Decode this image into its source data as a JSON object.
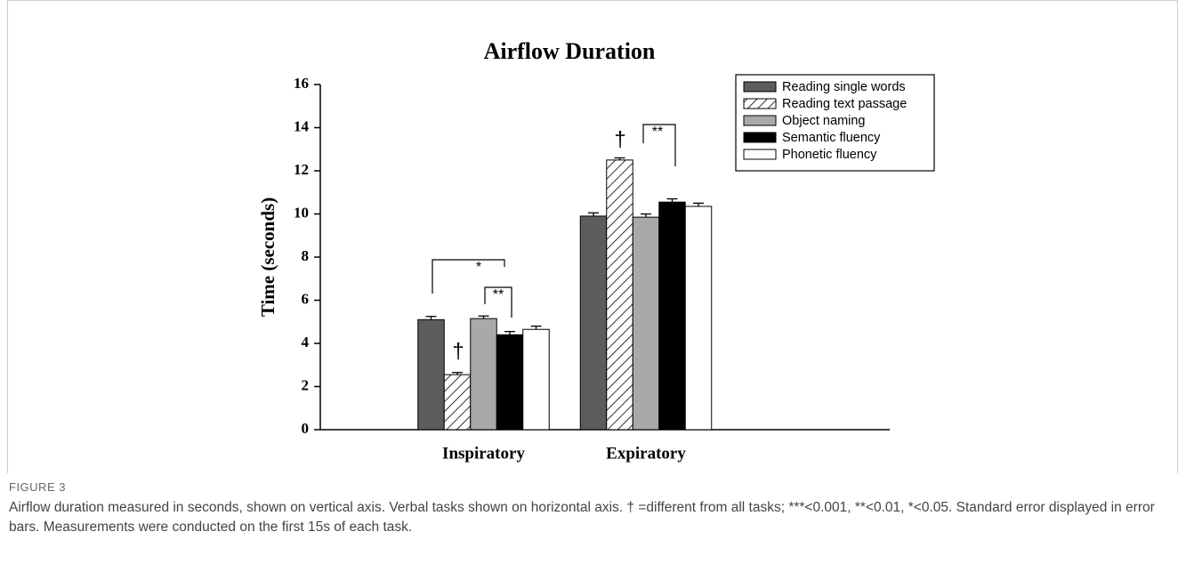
{
  "chart_data": {
    "type": "bar",
    "title": "Airflow Duration",
    "y_label": "Time (seconds)",
    "categories": [
      "Inspiratory",
      "Expiratory"
    ],
    "series": [
      {
        "name": "Reading single words",
        "color": "#5c5c5c",
        "values": [
          5.1,
          9.9
        ],
        "errors": [
          0.15,
          0.15
        ]
      },
      {
        "name": "Reading text passage",
        "color": "#ffffff",
        "hatch": true,
        "values": [
          2.55,
          12.5
        ],
        "errors": [
          0.1,
          0.1
        ]
      },
      {
        "name": "Object naming",
        "color": "#a9a9a9",
        "values": [
          5.15,
          9.85
        ],
        "errors": [
          0.12,
          0.15
        ]
      },
      {
        "name": "Semantic fluency",
        "color": "#000000",
        "values": [
          4.4,
          10.55
        ],
        "errors": [
          0.15,
          0.15
        ]
      },
      {
        "name": "Phonetic fluency",
        "color": "#ffffff",
        "values": [
          4.65,
          10.35
        ],
        "errors": [
          0.15,
          0.15
        ]
      }
    ],
    "ylim": [
      0,
      16
    ],
    "yticks": [
      0,
      2,
      4,
      6,
      8,
      10,
      12,
      14,
      16
    ],
    "legend": "upper right",
    "annotations": [
      "†",
      "†",
      "*",
      "**",
      "**"
    ],
    "figure_label": "FIGURE 3",
    "caption": "Airflow duration measured in seconds, shown on vertical axis. Verbal tasks shown on horizontal axis. † =different from all tasks; ***<0.001, **<0.01, *<0.05. Standard error displayed in error bars. Measurements were conducted on the first 15s of each task."
  }
}
